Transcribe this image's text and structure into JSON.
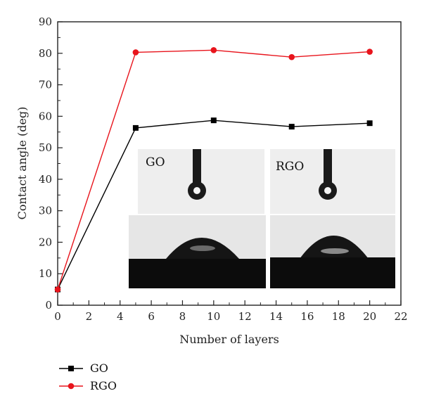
{
  "chart_data": {
    "type": "line",
    "title": "",
    "xlabel": "Number of layers",
    "ylabel": "Contact angle (deg)",
    "xlim": [
      0,
      22
    ],
    "ylim": [
      0,
      90
    ],
    "xticks": [
      0,
      2,
      4,
      6,
      8,
      10,
      12,
      14,
      16,
      18,
      20,
      22
    ],
    "yticks": [
      0,
      10,
      20,
      30,
      40,
      50,
      60,
      70,
      80,
      90
    ],
    "grid": false,
    "legend": "bottom-left, below plot",
    "x": [
      0,
      5,
      10,
      15,
      20
    ],
    "series": [
      {
        "name": "GO",
        "color": "#000000",
        "marker": "square",
        "values": [
          5,
          56.3,
          58.7,
          56.7,
          57.8
        ]
      },
      {
        "name": "RGO",
        "color": "#e8141c",
        "marker": "circle",
        "values": [
          5,
          80.3,
          81,
          78.8,
          80.5
        ]
      }
    ],
    "annotations": {
      "inset_left_label": "GO",
      "inset_right_label": "RGO"
    }
  }
}
